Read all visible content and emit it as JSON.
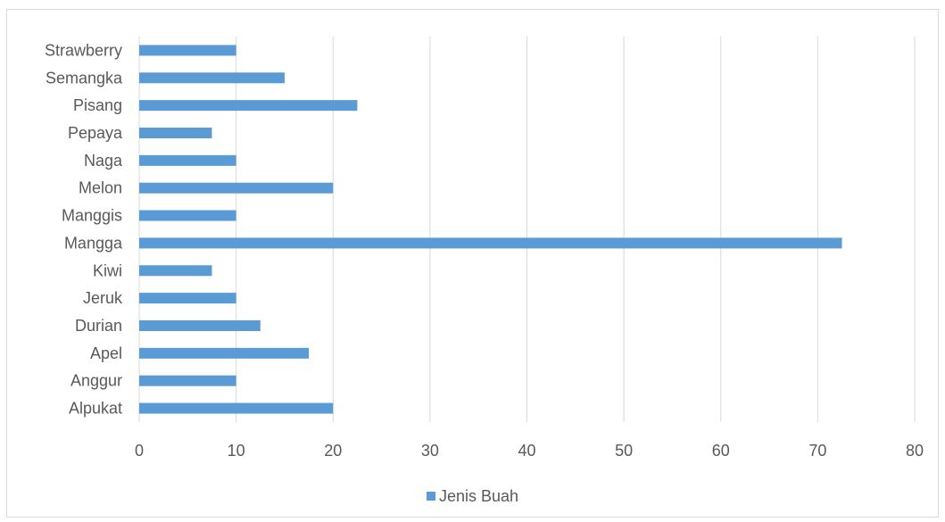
{
  "chart_data": {
    "type": "bar",
    "orientation": "horizontal",
    "categories": [
      "Alpukat",
      "Anggur",
      "Apel",
      "Durian",
      "Jeruk",
      "Kiwi",
      "Mangga",
      "Manggis",
      "Melon",
      "Naga",
      "Pepaya",
      "Pisang",
      "Semangka",
      "Strawberry"
    ],
    "series": [
      {
        "name": "Jenis Buah",
        "values": [
          20,
          10,
          17.5,
          12.5,
          10,
          7.5,
          72.5,
          10,
          20,
          10,
          7.5,
          22.5,
          15,
          10
        ]
      }
    ],
    "xlim": [
      0,
      80
    ],
    "xticks": [
      0,
      10,
      20,
      30,
      40,
      50,
      60,
      70,
      80
    ],
    "grid": "vertical",
    "legend_position": "bottom",
    "title": "",
    "xlabel": "",
    "ylabel": "",
    "colors": {
      "bar": "#5b9bd5",
      "grid": "#d9d9d9",
      "text": "#595959"
    }
  }
}
